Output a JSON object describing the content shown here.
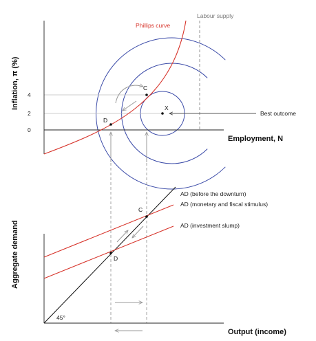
{
  "colors": {
    "phillips": "#d7332a",
    "indifference": "#3b4ba8",
    "ad_line": "#d7332a",
    "axis": "#222222",
    "guide": "#9a9a9a"
  },
  "top": {
    "y_axis_title": "Inflation, π (%)",
    "x_axis_title": "Employment, N",
    "ticks": [
      "4",
      "2",
      "0"
    ],
    "phillips_label": "Phillips curve",
    "labour_supply_label": "Labour supply",
    "best_outcome_label": "Best outcome",
    "points": {
      "c": "C",
      "d": "D",
      "x": "X"
    }
  },
  "bottom": {
    "y_axis_title": "Aggregate demand",
    "x_axis_title": "Output (income)",
    "ad_before_label": "AD (before the downturn)",
    "ad_stimulus_label": "AD (monetary and fiscal stimulus)",
    "ad_slump_label": "AD (investment slump)",
    "angle_label": "45°",
    "points": {
      "c": "C",
      "d": "D"
    }
  }
}
